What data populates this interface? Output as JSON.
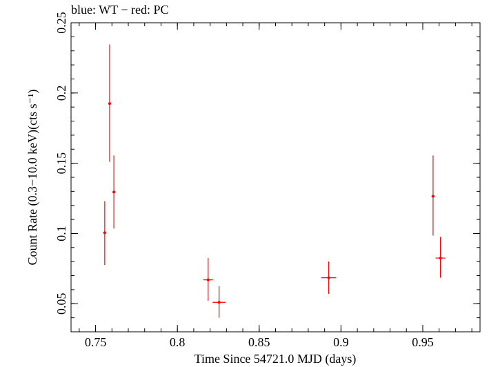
{
  "chart_data": {
    "type": "scatter",
    "title": "blue: WT − red: PC",
    "xlabel": "Time Since 54721.0 MJD (days)",
    "ylabel": "Count Rate (0.3−10.0 keV)(cts s⁻¹)",
    "xlim": [
      0.735,
      0.985
    ],
    "ylim": [
      0.03,
      0.25
    ],
    "xticks": [
      0.75,
      0.8,
      0.85,
      0.9,
      0.95
    ],
    "xtick_labels": [
      "0.75",
      "0.8",
      "0.85",
      "0.9",
      "0.95"
    ],
    "yticks": [
      0.05,
      0.1,
      0.15,
      0.2,
      0.25
    ],
    "ytick_labels": [
      "0.05",
      "0.1",
      "0.15",
      "0.2",
      "0.25"
    ],
    "x_minor_step": 0.01,
    "y_minor_step": 0.01,
    "grid": false,
    "series": [
      {
        "name": "PC",
        "color": "#ff0000",
        "points": [
          {
            "x": 0.7556,
            "y": 0.1005,
            "xerr": 0.001,
            "ylo": 0.0775,
            "yhi": 0.123
          },
          {
            "x": 0.7586,
            "y": 0.1925,
            "xerr": 0.0006,
            "ylo": 0.151,
            "yhi": 0.2345
          },
          {
            "x": 0.7612,
            "y": 0.1295,
            "xerr": 0.001,
            "ylo": 0.1035,
            "yhi": 0.1555
          },
          {
            "x": 0.8188,
            "y": 0.067,
            "xerr": 0.003,
            "ylo": 0.052,
            "yhi": 0.0825
          },
          {
            "x": 0.8255,
            "y": 0.051,
            "xerr": 0.004,
            "ylo": 0.04,
            "yhi": 0.0625
          },
          {
            "x": 0.8925,
            "y": 0.0685,
            "xerr": 0.0045,
            "ylo": 0.057,
            "yhi": 0.08
          },
          {
            "x": 0.9563,
            "y": 0.1265,
            "xerr": 0.001,
            "ylo": 0.0985,
            "yhi": 0.1555
          },
          {
            "x": 0.9608,
            "y": 0.0825,
            "xerr": 0.003,
            "ylo": 0.0685,
            "yhi": 0.0975
          }
        ]
      }
    ]
  }
}
